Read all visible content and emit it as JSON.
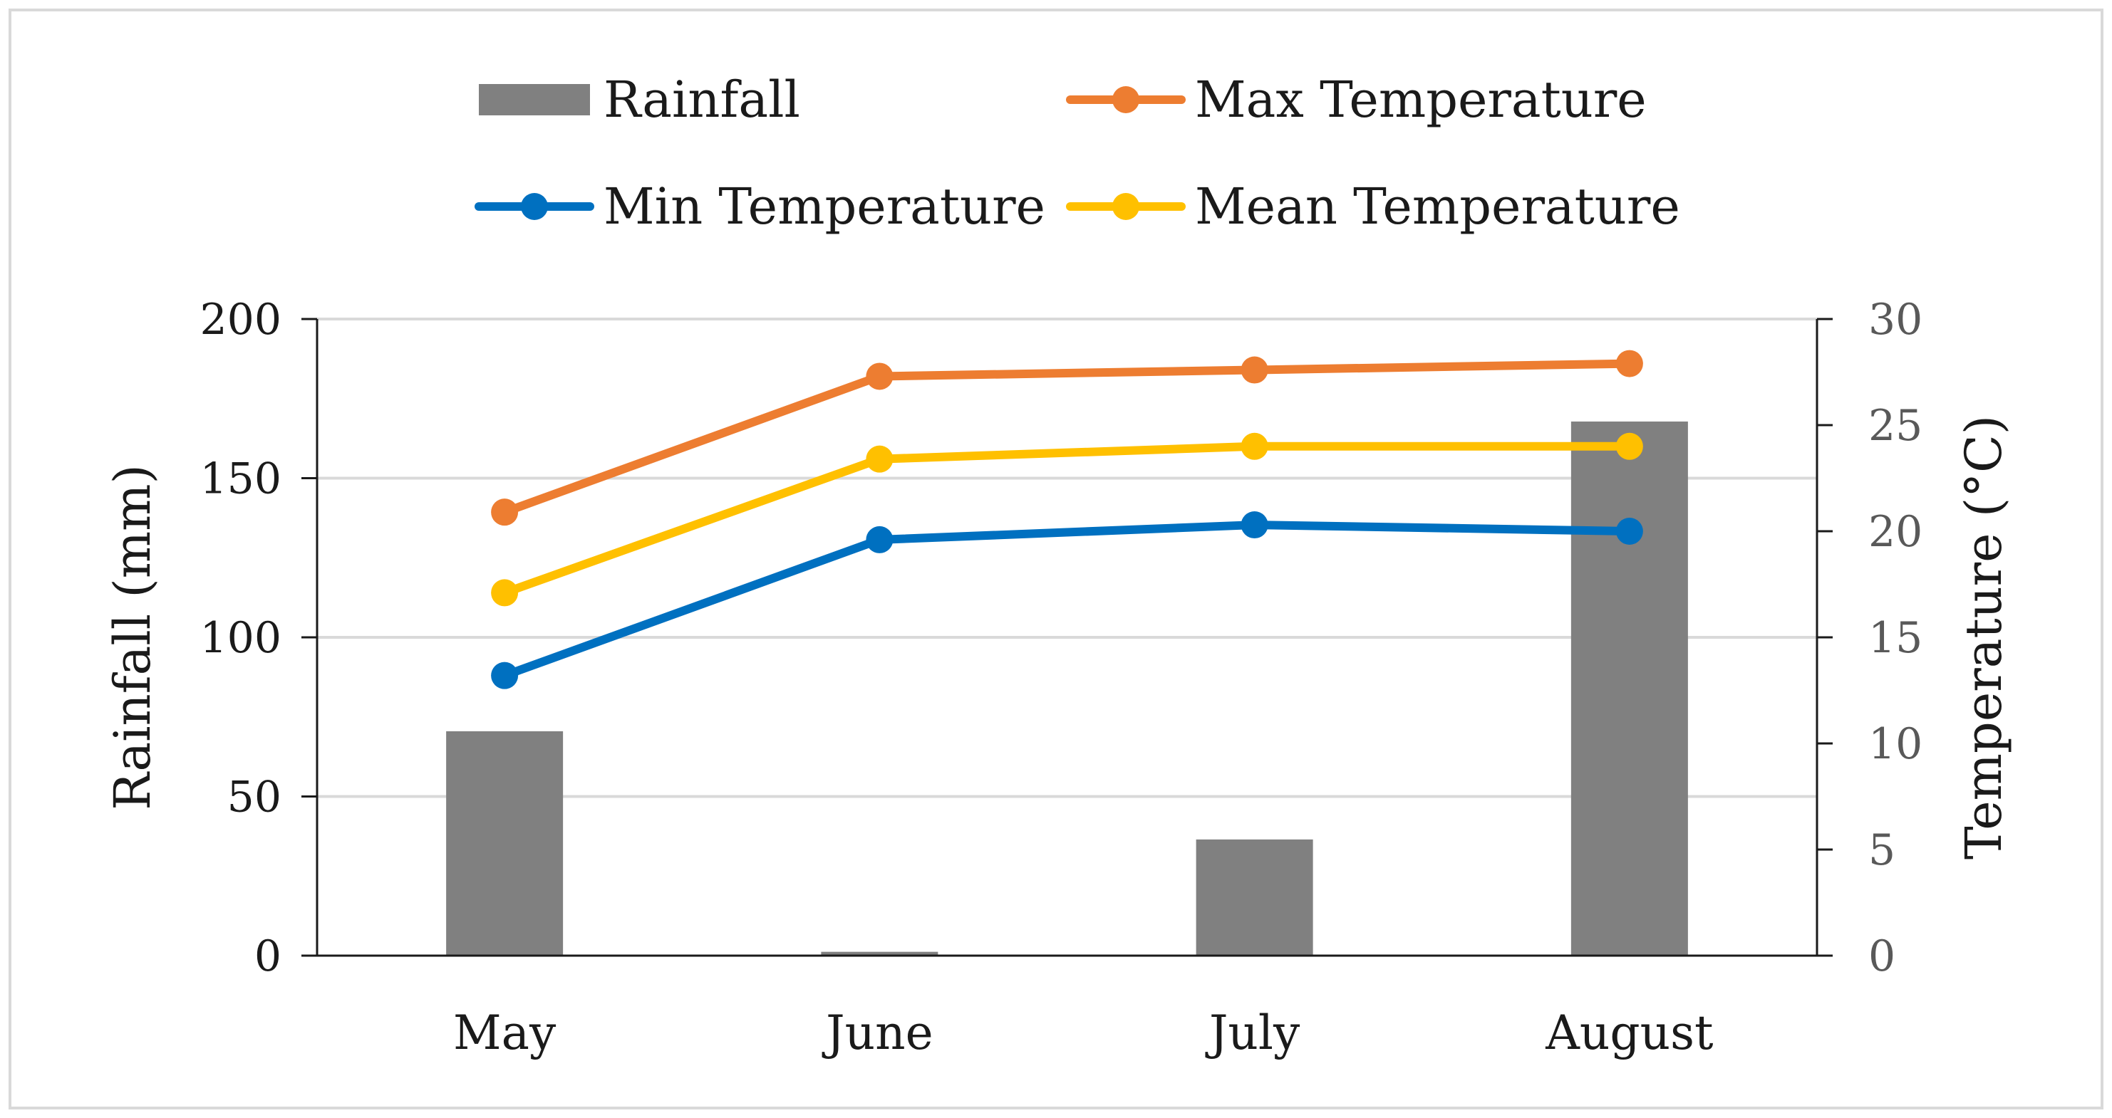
{
  "chart_data": {
    "type": "bar+line",
    "categories": [
      "May",
      "June",
      "July",
      "August"
    ],
    "bar_series": {
      "name": "Rainfall",
      "axis": "left",
      "color": "#808080",
      "values": [
        70.5,
        1.2,
        36.5,
        167.8
      ]
    },
    "line_series": [
      {
        "name": "Max Temperature",
        "axis": "right",
        "color": "#ED7D31",
        "values": [
          20.9,
          27.3,
          27.6,
          27.9
        ]
      },
      {
        "name": "Mean Temperature",
        "axis": "right",
        "color": "#FFC000",
        "values": [
          17.1,
          23.4,
          24.0,
          24.0
        ]
      },
      {
        "name": "Min Temperature",
        "axis": "right",
        "color": "#0070C0",
        "values": [
          13.2,
          19.6,
          20.3,
          20.0
        ]
      }
    ],
    "left_axis": {
      "label": "Rainfall (mm)",
      "min": 0,
      "max": 200,
      "ticks": [
        0,
        50,
        100,
        150,
        200
      ]
    },
    "right_axis": {
      "label": "Temperature (°C)",
      "min": 0,
      "max": 30,
      "ticks": [
        0,
        5,
        10,
        15,
        20,
        25,
        30
      ]
    },
    "legend": {
      "placement": "top",
      "items": [
        {
          "label": "Rainfall",
          "kind": "bar",
          "color": "#808080"
        },
        {
          "label": "Max Temperature",
          "kind": "line",
          "color": "#ED7D31"
        },
        {
          "label": "Min Temperature",
          "kind": "line",
          "color": "#0070C0"
        },
        {
          "label": "Mean Temperature",
          "kind": "line",
          "color": "#FFC000"
        }
      ]
    },
    "grid": true
  }
}
